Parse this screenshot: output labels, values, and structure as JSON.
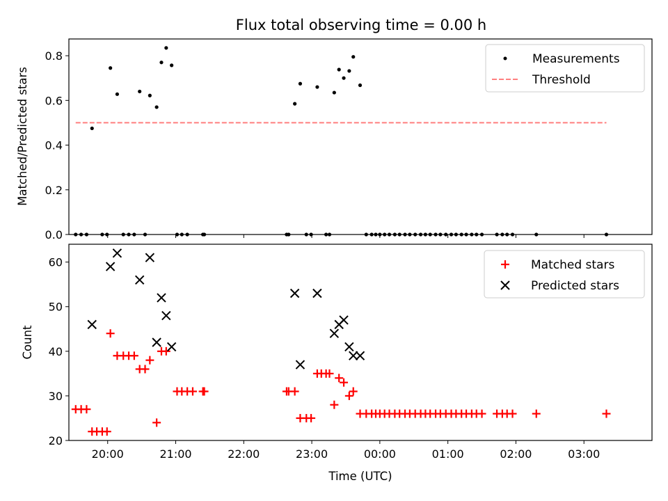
{
  "figure_title": "Flux total observing time = 0.00 h",
  "colors": {
    "measurement": "#000000",
    "threshold": "#ff7f7f",
    "matched": "#ff0000",
    "predicted": "#000000",
    "axes": "#000000"
  },
  "chart_data": [
    {
      "type": "scatter",
      "ylabel": "Matched/Predicted stars",
      "xlabel": "",
      "x_unit": "hours since 00:00 UTC",
      "xlim": [
        -4.57,
        4.0
      ],
      "ylim": [
        0.0,
        0.875
      ],
      "ytick_values": [
        0.0,
        0.2,
        0.4,
        0.6,
        0.8
      ],
      "ytick_labels": [
        "0.0",
        "0.2",
        "0.4",
        "0.6",
        "0.8"
      ],
      "xtick_values": [
        -4,
        -3,
        -2,
        -1,
        0,
        1,
        2,
        3
      ],
      "grid": false,
      "legend_position": "top-right",
      "series": [
        {
          "name": "Measurements",
          "marker": "dot",
          "points": [
            [
              -4.47,
              0
            ],
            [
              -4.39,
              0
            ],
            [
              -4.31,
              0
            ],
            [
              -4.23,
              0.475
            ],
            [
              -4.08,
              0
            ],
            [
              -4.01,
              0
            ],
            [
              -3.96,
              0.745
            ],
            [
              -3.86,
              0.628
            ],
            [
              -3.77,
              0
            ],
            [
              -3.69,
              0
            ],
            [
              -3.61,
              0
            ],
            [
              -3.53,
              0.64
            ],
            [
              -3.45,
              0
            ],
            [
              -3.38,
              0.622
            ],
            [
              -3.28,
              0.57
            ],
            [
              -3.21,
              0.77
            ],
            [
              -3.14,
              0.835
            ],
            [
              -3.06,
              0.757
            ],
            [
              -2.98,
              0
            ],
            [
              -2.91,
              0
            ],
            [
              -2.83,
              0
            ],
            [
              -2.6,
              0
            ],
            [
              -2.58,
              0
            ],
            [
              -1.37,
              0
            ],
            [
              -1.34,
              0
            ],
            [
              -1.25,
              0.585
            ],
            [
              -1.17,
              0.675
            ],
            [
              -1.08,
              0
            ],
            [
              -1.01,
              0
            ],
            [
              -0.92,
              0.66
            ],
            [
              -0.79,
              0
            ],
            [
              -0.74,
              0
            ],
            [
              -0.67,
              0.635
            ],
            [
              -0.6,
              0.738
            ],
            [
              -0.53,
              0.7
            ],
            [
              -0.45,
              0.732
            ],
            [
              -0.39,
              0.795
            ],
            [
              -0.29,
              0.668
            ],
            [
              -0.2,
              0
            ],
            [
              -0.12,
              0
            ],
            [
              -0.06,
              0
            ],
            [
              0.0,
              0
            ],
            [
              0.07,
              0
            ],
            [
              0.14,
              0
            ],
            [
              0.22,
              0
            ],
            [
              0.29,
              0
            ],
            [
              0.37,
              0
            ],
            [
              0.44,
              0
            ],
            [
              0.52,
              0
            ],
            [
              0.6,
              0
            ],
            [
              0.67,
              0
            ],
            [
              0.74,
              0
            ],
            [
              0.82,
              0
            ],
            [
              0.89,
              0
            ],
            [
              0.97,
              0
            ],
            [
              1.05,
              0
            ],
            [
              1.12,
              0
            ],
            [
              1.2,
              0
            ],
            [
              1.27,
              0
            ],
            [
              1.35,
              0
            ],
            [
              1.42,
              0
            ],
            [
              1.5,
              0
            ],
            [
              1.72,
              0
            ],
            [
              1.8,
              0
            ],
            [
              1.87,
              0
            ],
            [
              1.95,
              0
            ],
            [
              2.3,
              0
            ],
            [
              3.33,
              0
            ]
          ]
        },
        {
          "name": "Threshold",
          "style": "dashed-line",
          "points": [
            [
              -4.47,
              0.5
            ],
            [
              3.33,
              0.5
            ]
          ]
        }
      ]
    },
    {
      "type": "scatter",
      "ylabel": "Count",
      "xlabel": "Time (UTC)",
      "x_unit": "hours since 00:00 UTC",
      "xlim": [
        -4.57,
        4.0
      ],
      "ylim": [
        20,
        64
      ],
      "ytick_values": [
        20,
        30,
        40,
        50,
        60
      ],
      "ytick_labels": [
        "20",
        "30",
        "40",
        "50",
        "60"
      ],
      "xtick_values": [
        -4,
        -3,
        -2,
        -1,
        0,
        1,
        2,
        3
      ],
      "xtick_labels": [
        "20:00",
        "21:00",
        "22:00",
        "23:00",
        "00:00",
        "01:00",
        "02:00",
        "03:00"
      ],
      "grid": false,
      "legend_position": "top-right",
      "series": [
        {
          "name": "Matched stars",
          "marker": "plus",
          "points": [
            [
              -4.47,
              27
            ],
            [
              -4.39,
              27
            ],
            [
              -4.31,
              27
            ],
            [
              -4.23,
              22
            ],
            [
              -4.16,
              22
            ],
            [
              -4.08,
              22
            ],
            [
              -4.01,
              22
            ],
            [
              -3.96,
              44
            ],
            [
              -3.86,
              39
            ],
            [
              -3.77,
              39
            ],
            [
              -3.69,
              39
            ],
            [
              -3.61,
              39
            ],
            [
              -3.53,
              36
            ],
            [
              -3.45,
              36
            ],
            [
              -3.38,
              38
            ],
            [
              -3.28,
              24
            ],
            [
              -3.21,
              40
            ],
            [
              -3.14,
              40
            ],
            [
              -2.98,
              31
            ],
            [
              -2.91,
              31
            ],
            [
              -2.83,
              31
            ],
            [
              -2.75,
              31
            ],
            [
              -2.6,
              31
            ],
            [
              -2.58,
              31
            ],
            [
              -1.37,
              31
            ],
            [
              -1.34,
              31
            ],
            [
              -1.25,
              31
            ],
            [
              -1.17,
              25
            ],
            [
              -1.08,
              25
            ],
            [
              -1.01,
              25
            ],
            [
              -0.92,
              35
            ],
            [
              -0.86,
              35
            ],
            [
              -0.79,
              35
            ],
            [
              -0.74,
              35
            ],
            [
              -0.67,
              28
            ],
            [
              -0.6,
              34
            ],
            [
              -0.53,
              33
            ],
            [
              -0.45,
              30
            ],
            [
              -0.39,
              31
            ],
            [
              -0.29,
              26
            ],
            [
              -0.2,
              26
            ],
            [
              -0.12,
              26
            ],
            [
              -0.06,
              26
            ],
            [
              0.0,
              26
            ],
            [
              0.07,
              26
            ],
            [
              0.14,
              26
            ],
            [
              0.22,
              26
            ],
            [
              0.29,
              26
            ],
            [
              0.37,
              26
            ],
            [
              0.44,
              26
            ],
            [
              0.52,
              26
            ],
            [
              0.6,
              26
            ],
            [
              0.67,
              26
            ],
            [
              0.74,
              26
            ],
            [
              0.82,
              26
            ],
            [
              0.89,
              26
            ],
            [
              0.97,
              26
            ],
            [
              1.05,
              26
            ],
            [
              1.12,
              26
            ],
            [
              1.2,
              26
            ],
            [
              1.27,
              26
            ],
            [
              1.35,
              26
            ],
            [
              1.42,
              26
            ],
            [
              1.5,
              26
            ],
            [
              1.72,
              26
            ],
            [
              1.8,
              26
            ],
            [
              1.87,
              26
            ],
            [
              1.95,
              26
            ],
            [
              2.3,
              26
            ],
            [
              3.33,
              26
            ]
          ]
        },
        {
          "name": "Predicted stars",
          "marker": "cross",
          "points": [
            [
              -4.23,
              46
            ],
            [
              -3.96,
              59
            ],
            [
              -3.86,
              62
            ],
            [
              -3.53,
              56
            ],
            [
              -3.38,
              61
            ],
            [
              -3.28,
              42
            ],
            [
              -3.21,
              52
            ],
            [
              -3.14,
              48
            ],
            [
              -3.06,
              41
            ],
            [
              -1.25,
              53
            ],
            [
              -1.17,
              37
            ],
            [
              -0.92,
              53
            ],
            [
              -0.67,
              44
            ],
            [
              -0.6,
              46
            ],
            [
              -0.53,
              47
            ],
            [
              -0.45,
              41
            ],
            [
              -0.39,
              39
            ],
            [
              -0.29,
              39
            ]
          ]
        }
      ]
    }
  ]
}
